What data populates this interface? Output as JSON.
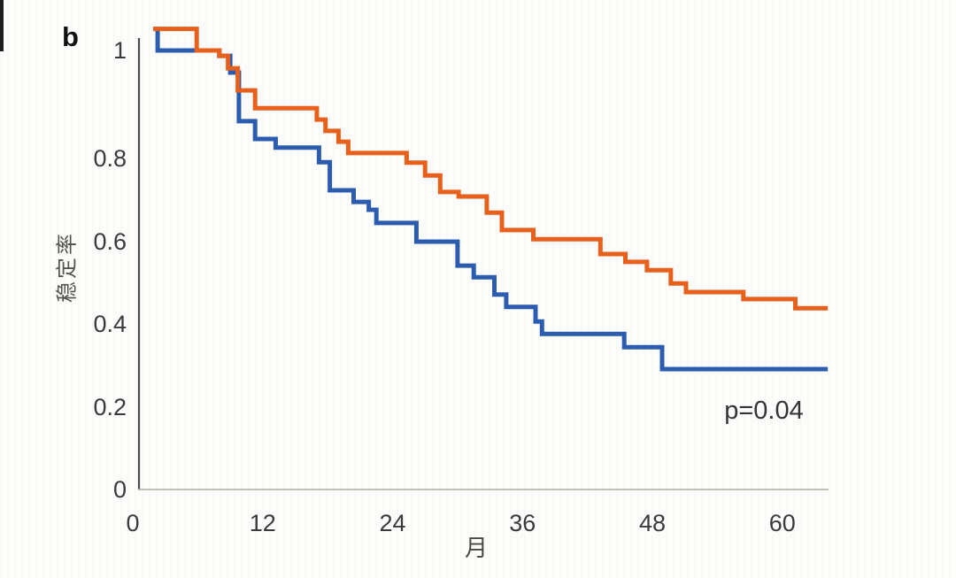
{
  "panel": {
    "label": "b"
  },
  "annotation": {
    "p_value": "p=0.04"
  },
  "axes": {
    "y": {
      "label": "稳定率",
      "ticks": [
        {
          "label": "1",
          "value": 1.0
        },
        {
          "label": "0.8",
          "value": 0.8
        },
        {
          "label": "0.6",
          "value": 0.6
        },
        {
          "label": "0.4",
          "value": 0.4
        },
        {
          "label": "0.2",
          "value": 0.2
        },
        {
          "label": "0",
          "value": 0.0
        }
      ]
    },
    "x": {
      "label": "月",
      "ticks": [
        {
          "label": "0",
          "value": 0
        },
        {
          "label": "12",
          "value": 12
        },
        {
          "label": "24",
          "value": 24
        },
        {
          "label": "36",
          "value": 36
        },
        {
          "label": "48",
          "value": 48
        },
        {
          "label": "60",
          "value": 60
        }
      ]
    }
  },
  "colors": {
    "orange": "#e7611d",
    "blue": "#2b5cb0",
    "y_axis_line": "#4a4a4a",
    "x_axis_line": "#aeaca0",
    "tick_text": "#3a3a3a"
  },
  "chart_data": {
    "type": "line",
    "subtype": "kaplan-meier-step",
    "title": "",
    "xlabel": "月",
    "ylabel": "稳定率",
    "xlim": [
      0,
      64.2
    ],
    "ylim": [
      0,
      1
    ],
    "grid": false,
    "legend": "none",
    "annotation": "p=0.04",
    "series": [
      {
        "name": "blue",
        "color": "#2b5cb0",
        "points": [
          [
            1.9,
            1.04
          ],
          [
            2.3,
            1.0
          ],
          [
            8.0,
            0.99
          ],
          [
            9.0,
            0.959
          ],
          [
            9.8,
            0.869
          ],
          [
            11.3,
            0.836
          ],
          [
            13.2,
            0.82
          ],
          [
            17.2,
            0.791
          ],
          [
            18.2,
            0.723
          ],
          [
            20.4,
            0.695
          ],
          [
            21.8,
            0.676
          ],
          [
            22.5,
            0.644
          ],
          [
            26.2,
            0.599
          ],
          [
            30.0,
            0.541
          ],
          [
            31.5,
            0.513
          ],
          [
            33.4,
            0.471
          ],
          [
            34.5,
            0.441
          ],
          [
            37.2,
            0.406
          ],
          [
            37.8,
            0.376
          ],
          [
            45.4,
            0.344
          ],
          [
            48.9,
            0.291
          ]
        ],
        "end_month": 64.2,
        "final_value": 0.291
      },
      {
        "name": "orange",
        "color": "#e7611d",
        "points": [
          [
            1.9,
            1.04
          ],
          [
            5.9,
            1.0
          ],
          [
            8.0,
            0.99
          ],
          [
            8.8,
            0.967
          ],
          [
            9.7,
            0.926
          ],
          [
            11.3,
            0.893
          ],
          [
            17.0,
            0.872
          ],
          [
            17.8,
            0.851
          ],
          [
            19.0,
            0.831
          ],
          [
            19.9,
            0.81
          ],
          [
            25.3,
            0.79
          ],
          [
            27.0,
            0.759
          ],
          [
            28.4,
            0.719
          ],
          [
            30.1,
            0.708
          ],
          [
            32.7,
            0.669
          ],
          [
            34.1,
            0.627
          ],
          [
            37.0,
            0.605
          ],
          [
            43.2,
            0.569
          ],
          [
            45.5,
            0.55
          ],
          [
            47.5,
            0.53
          ],
          [
            49.7,
            0.498
          ],
          [
            51.1,
            0.477
          ],
          [
            56.4,
            0.46
          ],
          [
            61.2,
            0.438
          ]
        ],
        "end_month": 64.2,
        "final_value": 0.438
      }
    ]
  }
}
